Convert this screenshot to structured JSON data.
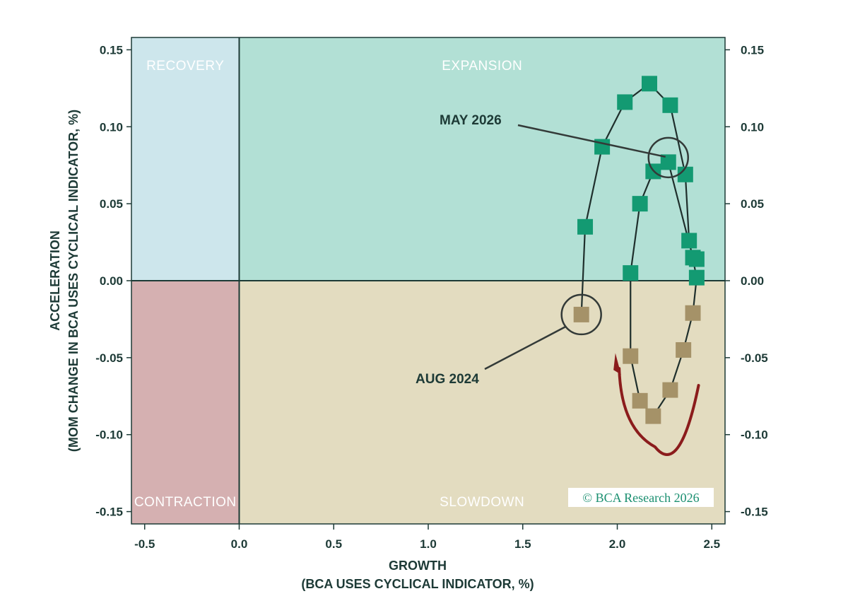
{
  "chart_data": {
    "type": "scatter",
    "title": "",
    "xlabel": [
      "GROWTH",
      "(BCA USES CYCLICAL INDICATOR, %)"
    ],
    "ylabel": [
      "ACCELERATION",
      "(MOM CHANGE IN BCA USES CYCLICAL INDICATOR, %)"
    ],
    "xlim": [
      -0.57,
      2.57
    ],
    "ylim": [
      -0.158,
      0.158
    ],
    "x_ticks": [
      {
        "value": -0.5,
        "label": "-0.5"
      },
      {
        "value": 0.0,
        "label": "0.0"
      },
      {
        "value": 0.5,
        "label": "0.5"
      },
      {
        "value": 1.0,
        "label": "1.0"
      },
      {
        "value": 1.5,
        "label": "1.5"
      },
      {
        "value": 2.0,
        "label": "2.0"
      },
      {
        "value": 2.5,
        "label": "2.5"
      }
    ],
    "y_ticks": [
      {
        "value": 0.15,
        "label": "0.15"
      },
      {
        "value": 0.1,
        "label": "0.10"
      },
      {
        "value": 0.05,
        "label": "0.05"
      },
      {
        "value": 0.0,
        "label": "0.00"
      },
      {
        "value": -0.05,
        "label": "-0.05"
      },
      {
        "value": -0.1,
        "label": "-0.10"
      },
      {
        "value": -0.15,
        "label": "-0.15"
      }
    ],
    "grid": false,
    "quadrants": [
      {
        "name": "RECOVERY",
        "color": "#cde6ec",
        "x": [
          -0.57,
          0.0
        ],
        "y": [
          0.0,
          0.158
        ],
        "label_anchor": "top"
      },
      {
        "name": "EXPANSION",
        "color": "#b2e0d5",
        "x": [
          0.0,
          2.57
        ],
        "y": [
          0.0,
          0.158
        ],
        "label_anchor": "top"
      },
      {
        "name": "CONTRACTION",
        "color": "#d5b0b1",
        "x": [
          -0.57,
          0.0
        ],
        "y": [
          -0.158,
          0.0
        ],
        "label_anchor": "bottom"
      },
      {
        "name": "SLOWDOWN",
        "color": "#e3dcc0",
        "x": [
          0.0,
          2.57
        ],
        "y": [
          -0.158,
          0.0
        ],
        "label_anchor": "bottom"
      }
    ],
    "series": [
      {
        "marker": "square",
        "positive_color": "#139a72",
        "negative_color": "#a59268",
        "line_color": "#1f2f2c",
        "points": [
          {
            "x": 1.81,
            "y": -0.022
          },
          {
            "x": 1.83,
            "y": 0.035
          },
          {
            "x": 1.92,
            "y": 0.087
          },
          {
            "x": 2.04,
            "y": 0.116
          },
          {
            "x": 2.17,
            "y": 0.128
          },
          {
            "x": 2.28,
            "y": 0.114
          },
          {
            "x": 2.36,
            "y": 0.069
          },
          {
            "x": 2.38,
            "y": 0.026
          },
          {
            "x": 2.42,
            "y": 0.002
          },
          {
            "x": 2.4,
            "y": -0.021
          },
          {
            "x": 2.35,
            "y": -0.045
          },
          {
            "x": 2.28,
            "y": -0.071
          },
          {
            "x": 2.19,
            "y": -0.088
          },
          {
            "x": 2.12,
            "y": -0.078
          },
          {
            "x": 2.07,
            "y": -0.049
          },
          {
            "x": 2.07,
            "y": 0.005
          },
          {
            "x": 2.12,
            "y": 0.05
          },
          {
            "x": 2.19,
            "y": 0.071
          },
          {
            "x": 2.27,
            "y": 0.077
          },
          {
            "x": 2.4,
            "y": 0.015
          },
          {
            "x": 2.42,
            "y": 0.014
          }
        ]
      }
    ],
    "annotations": [
      {
        "text": "MAY 2026",
        "point": {
          "x": 2.27,
          "y": 0.08
        }
      },
      {
        "text": "AUG 2024",
        "point": {
          "x": 1.81,
          "y": -0.022
        }
      }
    ],
    "colors": {
      "axis": "#1d3a36",
      "arrow": "#8b1c1c",
      "highlight_circle": "#333a38"
    }
  },
  "credit": {
    "text": "© BCA Research 2026",
    "color": "#1a8f70"
  }
}
